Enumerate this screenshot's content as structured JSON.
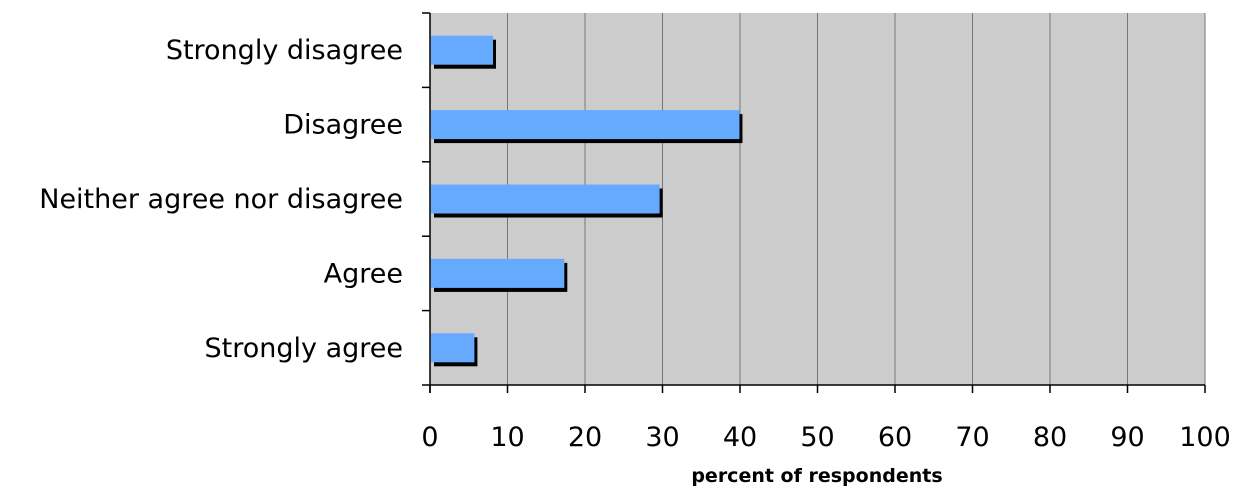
{
  "chart_data": {
    "type": "bar",
    "orientation": "horizontal",
    "categories": [
      "Strongly disagree",
      "Disagree",
      "Neither agree nor disagree",
      "Agree",
      "Strongly agree"
    ],
    "values": [
      8,
      39.8,
      29.5,
      17.2,
      5.6
    ],
    "xlabel": "percent of respondents",
    "ylabel": "",
    "xlim": [
      0,
      100
    ],
    "xticks": [
      "0",
      "10",
      "20",
      "30",
      "40",
      "50",
      "60",
      "70",
      "80",
      "90",
      "100"
    ],
    "grid": "vertical",
    "legend": "none",
    "colors": {
      "bar": "#66aaff",
      "bar_shadow": "#000000",
      "plot_background": "#cccccc",
      "grid": "#777777"
    }
  }
}
